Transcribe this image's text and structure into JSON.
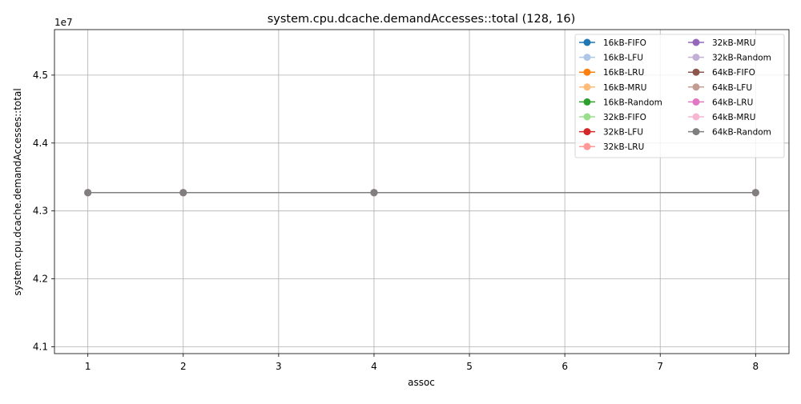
{
  "chart_data": {
    "type": "line",
    "title": "system.cpu.dcache.demandAccesses::total (128, 16)",
    "xlabel": "assoc",
    "ylabel": "system.cpu.dcache.demandAccesses::total",
    "y_offset_label": "1e7",
    "y_scale": 10000000,
    "xlim": [
      0.65,
      8.35
    ],
    "ylim": [
      40900000,
      45670000
    ],
    "x_ticks": [
      1,
      2,
      3,
      4,
      5,
      6,
      7,
      8
    ],
    "y_ticks": [
      41000000,
      42000000,
      43000000,
      44000000,
      45000000
    ],
    "y_tick_labels": [
      "4.1",
      "4.2",
      "4.3",
      "4.4",
      "4.5"
    ],
    "grid": true,
    "legend_position": "top-right",
    "legend_columns": 2,
    "x": [
      1,
      2,
      4,
      8
    ],
    "series": [
      {
        "name": "16kB-FIFO",
        "color": "#1f77b4",
        "values": [
          43270000,
          43270000,
          43270000,
          43270000
        ]
      },
      {
        "name": "16kB-LFU",
        "color": "#aec7e8",
        "values": [
          43270000,
          43270000,
          43270000,
          43270000
        ]
      },
      {
        "name": "16kB-LRU",
        "color": "#ff7f0e",
        "values": [
          43270000,
          43270000,
          43270000,
          43270000
        ]
      },
      {
        "name": "16kB-MRU",
        "color": "#ffbb78",
        "values": [
          43270000,
          43270000,
          43270000,
          43270000
        ]
      },
      {
        "name": "16kB-Random",
        "color": "#2ca02c",
        "values": [
          43270000,
          43270000,
          43270000,
          43270000
        ]
      },
      {
        "name": "32kB-FIFO",
        "color": "#98df8a",
        "values": [
          43270000,
          43270000,
          43270000,
          43270000
        ]
      },
      {
        "name": "32kB-LFU",
        "color": "#d62728",
        "values": [
          43270000,
          43270000,
          43270000,
          43270000
        ]
      },
      {
        "name": "32kB-LRU",
        "color": "#ff9896",
        "values": [
          43270000,
          43270000,
          43270000,
          43270000
        ]
      },
      {
        "name": "32kB-MRU",
        "color": "#9467bd",
        "values": [
          43270000,
          43270000,
          43270000,
          43270000
        ]
      },
      {
        "name": "32kB-Random",
        "color": "#c5b0d5",
        "values": [
          43270000,
          43270000,
          43270000,
          43270000
        ]
      },
      {
        "name": "64kB-FIFO",
        "color": "#8c564b",
        "values": [
          43270000,
          43270000,
          43270000,
          43270000
        ]
      },
      {
        "name": "64kB-LFU",
        "color": "#c49c94",
        "values": [
          43270000,
          43270000,
          43270000,
          43270000
        ]
      },
      {
        "name": "64kB-LRU",
        "color": "#e377c2",
        "values": [
          43270000,
          43270000,
          43270000,
          43270000
        ]
      },
      {
        "name": "64kB-MRU",
        "color": "#f7b6d2",
        "values": [
          43270000,
          43270000,
          43270000,
          43270000
        ]
      },
      {
        "name": "64kB-Random",
        "color": "#7f7f7f",
        "values": [
          43270000,
          43270000,
          43270000,
          43270000
        ]
      }
    ]
  }
}
